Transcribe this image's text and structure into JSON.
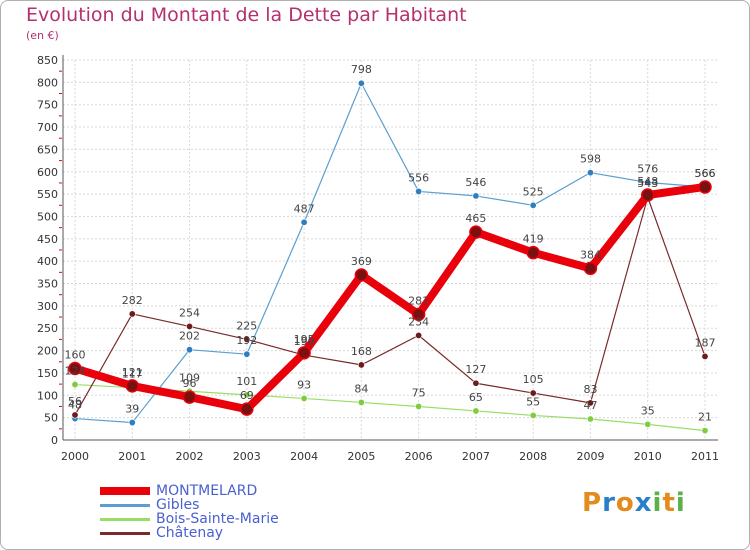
{
  "chart_data": {
    "type": "line",
    "title": "Evolution du Montant de la Dette par Habitant",
    "subtitle": "(en €)",
    "xlabel": "",
    "ylabel": "",
    "categories": [
      "2000",
      "2001",
      "2002",
      "2003",
      "2004",
      "2005",
      "2006",
      "2007",
      "2008",
      "2009",
      "2010",
      "2011"
    ],
    "ylim": [
      0,
      850
    ],
    "yticks": [
      0,
      50,
      100,
      150,
      200,
      250,
      300,
      350,
      400,
      450,
      500,
      550,
      600,
      650,
      700,
      750,
      800,
      850
    ],
    "grid": true,
    "legend_position": "bottom-left",
    "series": [
      {
        "name": "MONTMELARD",
        "color": "#e8000a",
        "values": [
          160,
          121,
          96,
          69,
          195,
          369,
          281,
          465,
          419,
          384,
          548,
          566
        ]
      },
      {
        "name": "Gibles",
        "color": "#5a9fd0",
        "values": [
          48,
          39,
          202,
          192,
          487,
          798,
          556,
          546,
          525,
          598,
          576,
          566
        ]
      },
      {
        "name": "Bois-Sainte-Marie",
        "color": "#99dd66",
        "values": [
          124,
          117,
          109,
          101,
          93,
          84,
          75,
          65,
          55,
          47,
          35,
          21
        ]
      },
      {
        "name": "Châtenay",
        "color": "#7a2a2a",
        "values": [
          56,
          282,
          254,
          225,
          190,
          168,
          234,
          127,
          105,
          83,
          543,
          187
        ]
      }
    ]
  },
  "brand": {
    "text": "Proxiti",
    "letters": [
      "P",
      "r",
      "o",
      "x",
      "i",
      "t",
      "i"
    ],
    "colors": [
      "#e38b1c",
      "#2a7fc9",
      "#e38b1c",
      "#2a7fc9",
      "#5bb04a",
      "#e38b1c",
      "#5bb04a"
    ]
  }
}
